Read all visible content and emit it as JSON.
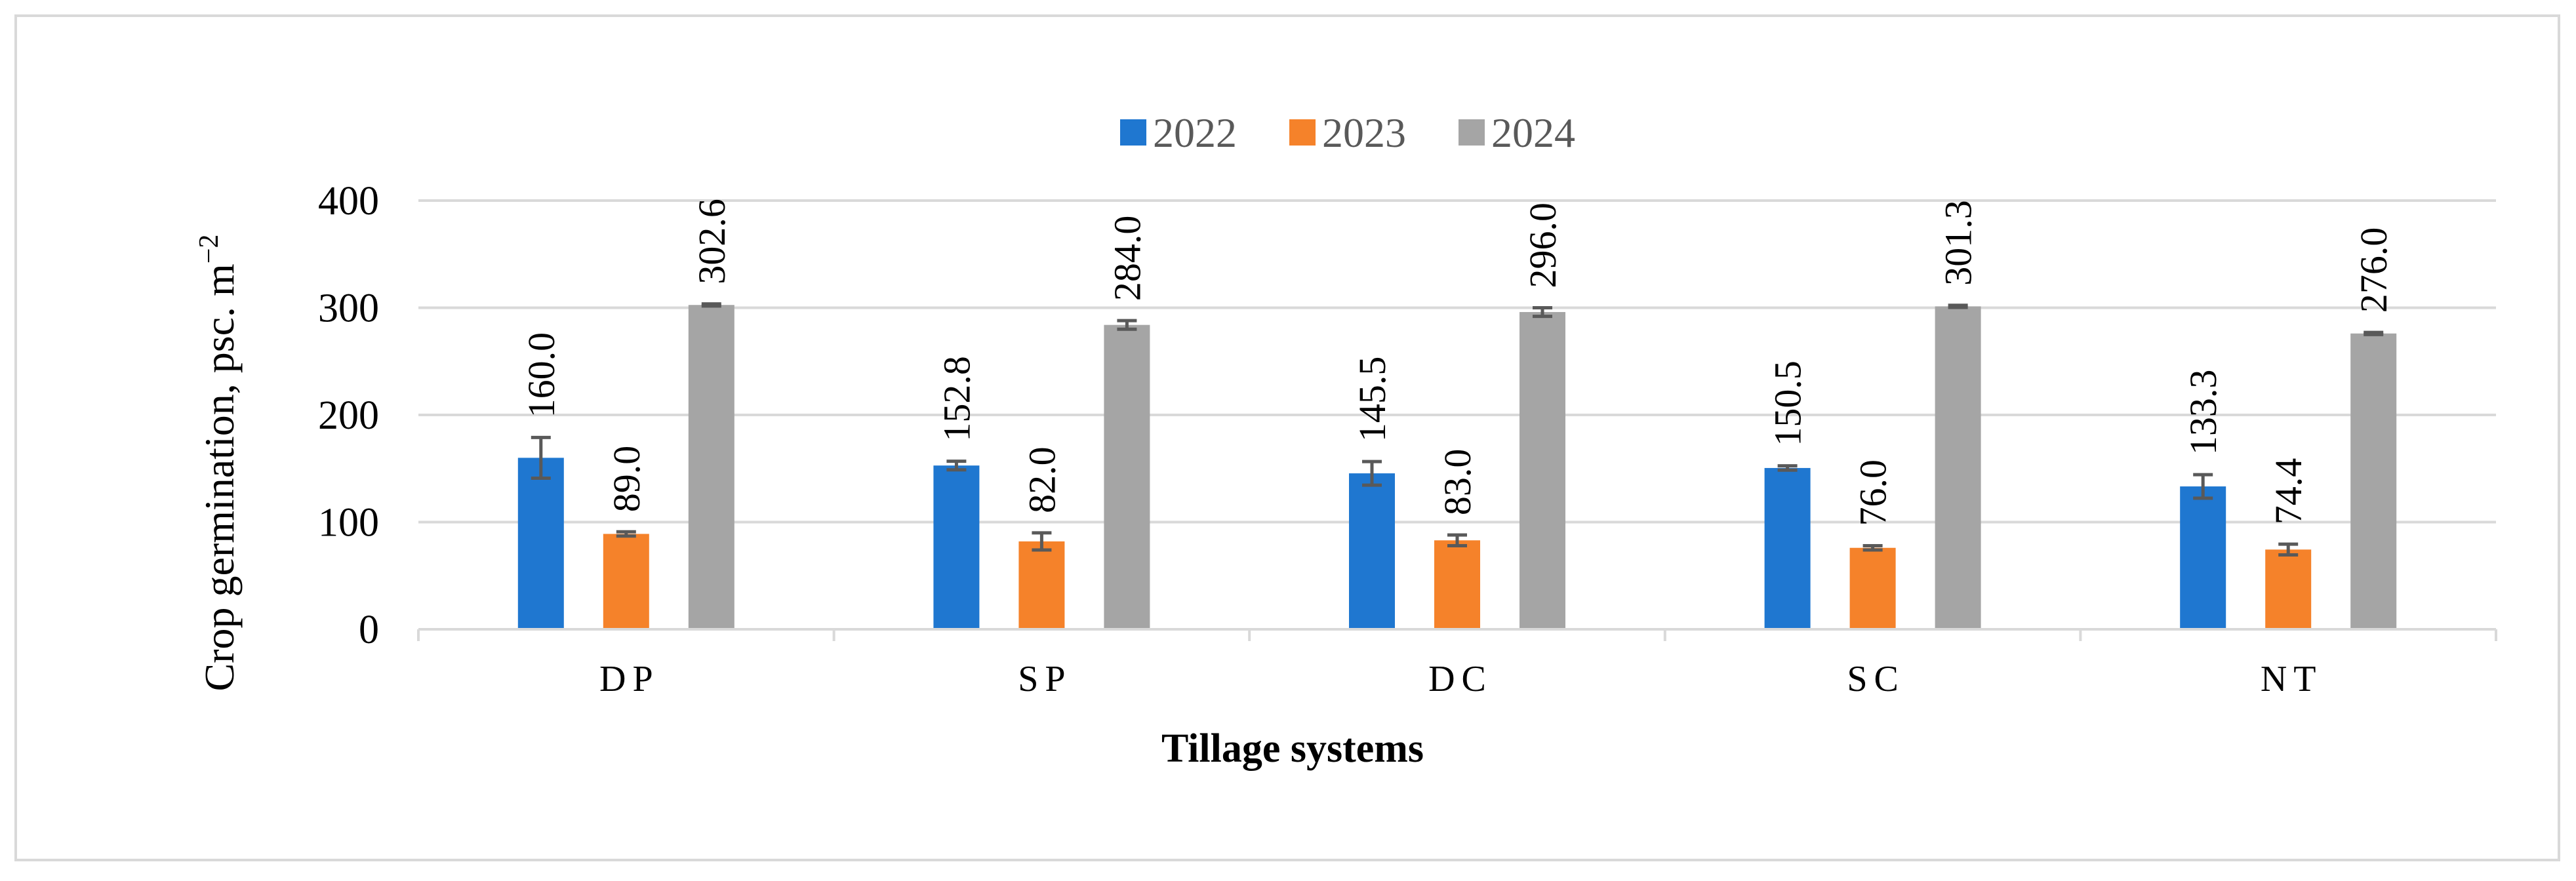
{
  "chart_data": {
    "type": "bar",
    "title": "",
    "xlabel": "Tillage systems",
    "ylabel": "Crop germination, psc. m",
    "ylabel_superscript": "−2",
    "categories": [
      "DP",
      "SP",
      "DC",
      "SC",
      "NT"
    ],
    "series": [
      {
        "name": "2022",
        "color": "#1f77d0",
        "values": [
          160.0,
          152.8,
          145.5,
          150.5,
          133.3
        ],
        "labels": [
          "160.0",
          "152.8",
          "145.5",
          "150.5",
          "133.3"
        ],
        "errors": [
          19,
          4,
          11,
          2,
          11
        ]
      },
      {
        "name": "2023",
        "color": "#f5822a",
        "values": [
          89.0,
          82.0,
          83.0,
          76.0,
          74.4
        ],
        "labels": [
          "89.0",
          "82.0",
          "83.0",
          "76.0",
          "74.4"
        ],
        "errors": [
          2,
          8,
          5,
          2,
          5
        ]
      },
      {
        "name": "2024",
        "color": "#a5a5a5",
        "values": [
          302.6,
          284.0,
          296.0,
          301.3,
          276.0
        ],
        "labels": [
          "302.6",
          "284.0",
          "296.0",
          "301.3",
          "276.0"
        ],
        "errors": [
          1,
          4,
          4,
          1,
          1
        ]
      }
    ],
    "ylim": [
      0,
      400
    ],
    "yticks": [
      "0",
      "100",
      "200",
      "300",
      "400"
    ],
    "ytick_values": [
      0,
      100,
      200,
      300,
      400
    ],
    "grid": true,
    "legend_position": "top-center",
    "gridline_color": "#d9d9d9",
    "error_bar_color": "#595959"
  }
}
